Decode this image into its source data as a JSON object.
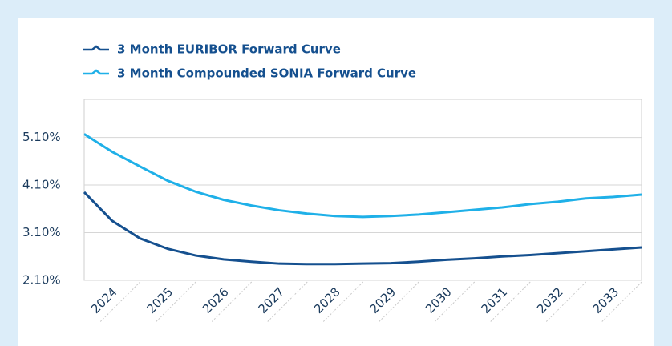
{
  "chart_data": {
    "type": "line",
    "x": [
      2023.5,
      2024,
      2024.5,
      2025,
      2025.5,
      2026,
      2026.5,
      2027,
      2027.5,
      2028,
      2028.5,
      2029,
      2029.5,
      2030,
      2030.5,
      2031,
      2031.5,
      2032,
      2032.5,
      2033,
      2033.5
    ],
    "series": [
      {
        "name": "3 Month EURIBOR Forward Curve",
        "color": "#15508f",
        "values": [
          3.95,
          3.35,
          2.98,
          2.76,
          2.62,
          2.54,
          2.49,
          2.45,
          2.44,
          2.44,
          2.45,
          2.46,
          2.49,
          2.53,
          2.56,
          2.6,
          2.63,
          2.67,
          2.71,
          2.75,
          2.79
        ]
      },
      {
        "name": "3 Month Compounded SONIA Forward Curve",
        "color": "#1fb0e8",
        "values": [
          5.17,
          4.8,
          4.49,
          4.19,
          3.96,
          3.79,
          3.67,
          3.57,
          3.5,
          3.45,
          3.43,
          3.45,
          3.48,
          3.53,
          3.58,
          3.63,
          3.7,
          3.75,
          3.82,
          3.85,
          3.9
        ]
      }
    ],
    "xlim": [
      2023.5,
      2033.5
    ],
    "xticks": [
      2024,
      2025,
      2026,
      2027,
      2028,
      2029,
      2030,
      2031,
      2032,
      2033
    ],
    "ylim": [
      2.1,
      5.9
    ],
    "yticks": [
      {
        "value": 2.1,
        "label": "2.10%"
      },
      {
        "value": 3.1,
        "label": "3.10%"
      },
      {
        "value": 4.1,
        "label": "4.10%"
      },
      {
        "value": 5.1,
        "label": "5.10%"
      }
    ],
    "grid": true
  }
}
